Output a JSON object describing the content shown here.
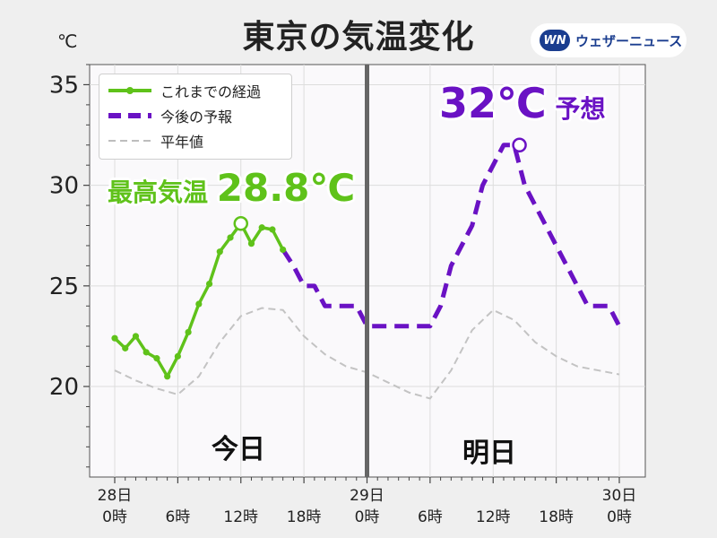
{
  "header": {
    "title": "東京の気温変化",
    "unit": "℃"
  },
  "logo": {
    "mark": "WN",
    "text": "ウェザーニュース"
  },
  "annotations": {
    "max_label": "最高気温",
    "max_value": "28.8℃",
    "forecast_value": "32℃",
    "forecast_label": "予想"
  },
  "day_labels": {
    "today": "今日",
    "tomorrow": "明日"
  },
  "colors": {
    "observed": "#5fc21a",
    "forecast": "#6a12c4",
    "normal": "#c3c3c3",
    "divider": "#666666"
  },
  "chart_data": {
    "type": "line",
    "title": "東京の気温変化",
    "ylabel": "℃",
    "xlim": [
      0,
      48
    ],
    "ylim": [
      15.5,
      36
    ],
    "yticks": [
      20,
      25,
      30,
      35
    ],
    "xticks": [
      {
        "hour": 0,
        "label": "28日\n0時"
      },
      {
        "hour": 6,
        "label": "6時"
      },
      {
        "hour": 12,
        "label": "12時"
      },
      {
        "hour": 18,
        "label": "18時"
      },
      {
        "hour": 24,
        "label": "29日\n0時"
      },
      {
        "hour": 30,
        "label": "6時"
      },
      {
        "hour": 36,
        "label": "12時"
      },
      {
        "hour": 42,
        "label": "18時"
      },
      {
        "hour": 48,
        "label": "30日\n0時"
      }
    ],
    "divider_hour": 24,
    "grid": true,
    "legend_position": "top-left",
    "series": [
      {
        "name": "これまでの経過",
        "style": "solid-markers",
        "x": [
          0,
          1,
          2,
          3,
          4,
          5,
          6,
          7,
          8,
          9,
          10,
          11,
          12,
          13,
          14,
          15,
          16
        ],
        "y": [
          22.4,
          21.9,
          22.5,
          21.7,
          21.4,
          20.5,
          21.5,
          22.7,
          24.1,
          25.1,
          26.7,
          27.4,
          28.1,
          27.1,
          27.9,
          27.8,
          26.8
        ]
      },
      {
        "name": "今後の予報",
        "style": "dashed",
        "x": [
          16,
          17,
          18,
          19,
          20,
          21,
          22,
          23,
          24,
          25,
          26,
          27,
          28,
          29,
          30,
          31,
          32,
          33,
          34,
          35,
          36,
          37,
          38,
          39,
          40,
          41,
          42,
          43,
          44,
          45,
          46,
          47,
          48
        ],
        "y": [
          26.8,
          26.0,
          25.0,
          25.0,
          24.0,
          24.0,
          24.0,
          24.0,
          23.0,
          23.0,
          23.0,
          23.0,
          23.0,
          23.0,
          23.0,
          24.0,
          26.0,
          27.0,
          28.0,
          30.0,
          31.0,
          32.0,
          32.0,
          30.0,
          29.0,
          28.0,
          27.0,
          26.0,
          25.0,
          24.0,
          24.0,
          24.0,
          23.0
        ]
      },
      {
        "name": "平年値",
        "style": "dashed-thin",
        "x": [
          0,
          2,
          4,
          6,
          8,
          10,
          12,
          14,
          16,
          18,
          20,
          22,
          24,
          26,
          28,
          30,
          32,
          34,
          36,
          38,
          40,
          42,
          44,
          46,
          48
        ],
        "y": [
          20.8,
          20.3,
          19.9,
          19.6,
          20.5,
          22.2,
          23.5,
          23.9,
          23.8,
          22.5,
          21.6,
          21.0,
          20.7,
          20.2,
          19.7,
          19.4,
          20.8,
          22.8,
          23.8,
          23.3,
          22.2,
          21.5,
          21.0,
          20.8,
          20.6
        ]
      }
    ],
    "highlight_points": [
      {
        "series": "これまでの経過",
        "x": 12,
        "y": 28.1
      },
      {
        "series": "今後の予報",
        "x": 38.5,
        "y": 32.0
      }
    ]
  }
}
